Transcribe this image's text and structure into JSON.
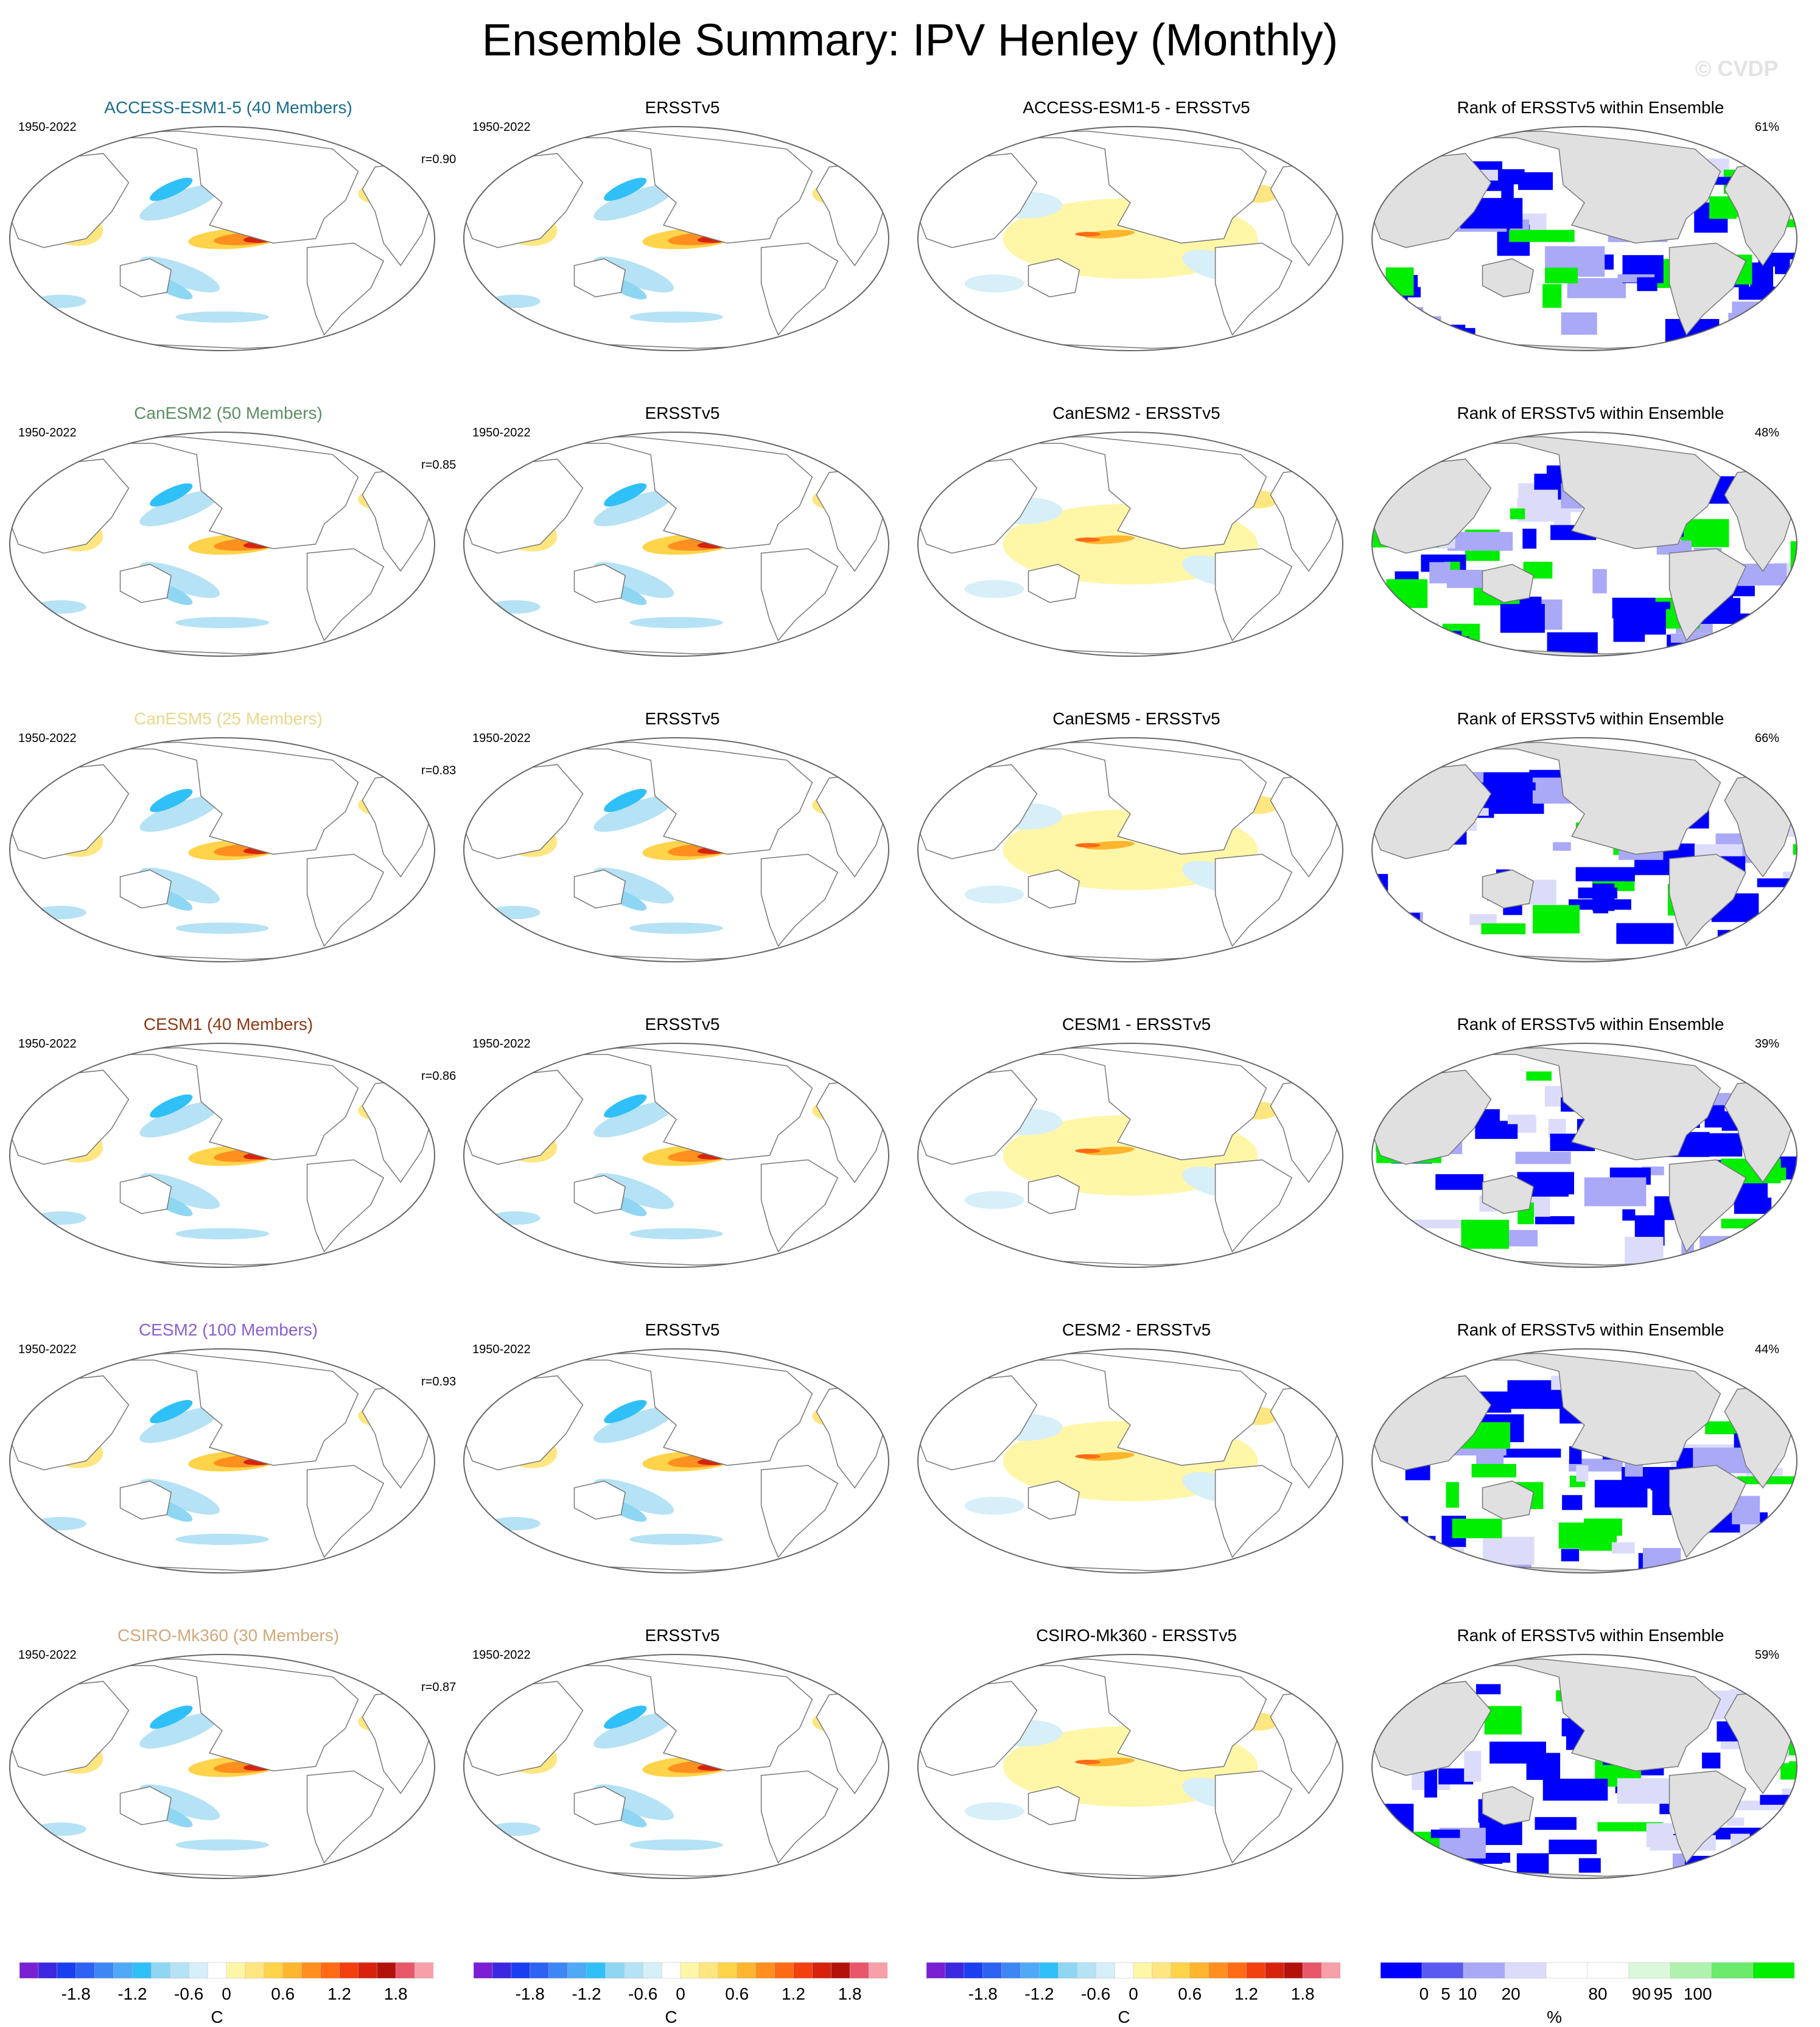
{
  "title": "Ensemble Summary: IPV Henley (Monthly)",
  "watermark": "© CVDP",
  "years": "1950-2022",
  "obs_label": "ERSSTv5",
  "rank_title": "Rank of ERSSTv5 within Ensemble",
  "rows": [
    {
      "model_title": "ACCESS-ESM1-5 (40 Members)",
      "model_color": "#1a6e8c",
      "r": "r=0.90",
      "diff_title": "ACCESS-ESM1-5 - ERSSTv5",
      "rank_pct": "61%"
    },
    {
      "model_title": "CanESM2 (50 Members)",
      "model_color": "#5c8f63",
      "r": "r=0.85",
      "diff_title": "CanESM2 - ERSSTv5",
      "rank_pct": "48%"
    },
    {
      "model_title": "CanESM5 (25 Members)",
      "model_color": "#e9d88a",
      "r": "r=0.83",
      "diff_title": "CanESM5 - ERSSTv5",
      "rank_pct": "66%"
    },
    {
      "model_title": "CESM1 (40 Members)",
      "model_color": "#8c3a14",
      "r": "r=0.86",
      "diff_title": "CESM1 - ERSSTv5",
      "rank_pct": "39%"
    },
    {
      "model_title": "CESM2 (100 Members)",
      "model_color": "#8a5fd1",
      "r": "r=0.93",
      "diff_title": "CESM2 - ERSSTv5",
      "rank_pct": "44%"
    },
    {
      "model_title": "CSIRO-Mk360 (30 Members)",
      "model_color": "#d2a77a",
      "r": "r=0.87",
      "diff_title": "CSIRO-Mk360 - ERSSTv5",
      "rank_pct": "59%"
    }
  ],
  "colorbars": {
    "temp": {
      "unit": "C",
      "ticks": [
        "-1.8",
        "-1.2",
        "-0.6",
        "0",
        "0.6",
        "1.2",
        "1.8"
      ],
      "colors": [
        "#7a1fd2",
        "#3b28e0",
        "#1a3ff0",
        "#2d62f2",
        "#3d86f4",
        "#4fa9f7",
        "#2fc0f7",
        "#8fd6f3",
        "#b5e2f5",
        "#d6eff8",
        "#ffffff",
        "#fff6a8",
        "#ffe680",
        "#ffd34a",
        "#ffb52e",
        "#ff8f1f",
        "#ff6a14",
        "#f2400f",
        "#d7230d",
        "#b3120b",
        "#e8566a",
        "#f7a0aa"
      ]
    },
    "rank": {
      "unit": "%",
      "ticks": [
        "0",
        "5",
        "10",
        "20",
        "80",
        "90",
        "95",
        "100"
      ],
      "colors": [
        "#0000ff",
        "#5a5af0",
        "#a9a9f7",
        "#dcdcfa",
        "#ffffff",
        "#ffffff",
        "#dcf8dc",
        "#aef2ae",
        "#6bea6b",
        "#00ee00"
      ]
    }
  }
}
